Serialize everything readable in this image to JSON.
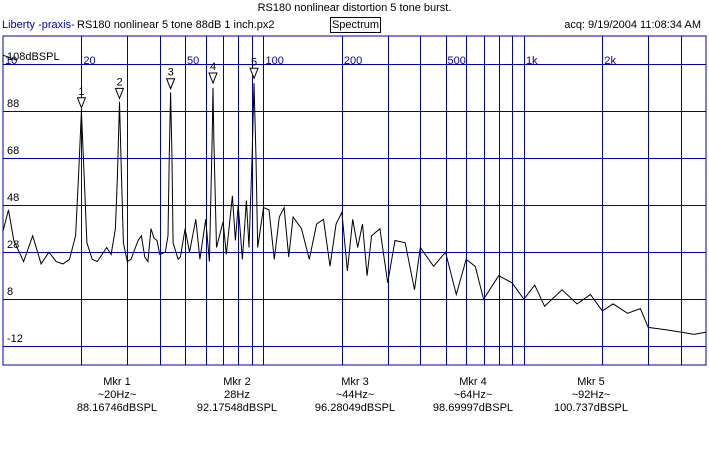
{
  "header": {
    "title": "RS180 nonlinear distortion 5 tone burst.",
    "app_name": "Liberty -praxis-",
    "file_name": "RS180 nonlinear 5 tone 88dB 1 inch.px2",
    "view_button": "Spectrum",
    "acquired": "acq: 9/19/2004 11:08:34 AM"
  },
  "chart_data": {
    "type": "line",
    "x_scale": "log",
    "xlim": [
      10,
      5000
    ],
    "ylim": [
      -20,
      120
    ],
    "grid": true,
    "x_tick_labels": [
      "10",
      "20",
      "50",
      "100",
      "200",
      "500",
      "1k",
      "2k"
    ],
    "y_tick_labels": [
      "108dBSPL",
      "88",
      "68",
      "48",
      "28",
      "8",
      "-12"
    ],
    "series": [
      {
        "points": [
          [
            10,
            37
          ],
          [
            10.5,
            46
          ],
          [
            11,
            33
          ],
          [
            12,
            24
          ],
          [
            13,
            35
          ],
          [
            14,
            23
          ],
          [
            15,
            28
          ],
          [
            16,
            24
          ],
          [
            17,
            23
          ],
          [
            18,
            25
          ],
          [
            19,
            35
          ],
          [
            19.5,
            60
          ],
          [
            20,
            88
          ],
          [
            20.5,
            60
          ],
          [
            21,
            32
          ],
          [
            22,
            25
          ],
          [
            23,
            24
          ],
          [
            24,
            27
          ],
          [
            25,
            30
          ],
          [
            26,
            27
          ],
          [
            27,
            38
          ],
          [
            27.5,
            60
          ],
          [
            28,
            92
          ],
          [
            28.5,
            60
          ],
          [
            29,
            32
          ],
          [
            30,
            24
          ],
          [
            31,
            25
          ],
          [
            33,
            33
          ],
          [
            34,
            35
          ],
          [
            35,
            26
          ],
          [
            36,
            24
          ],
          [
            37,
            38
          ],
          [
            38,
            34
          ],
          [
            39,
            33
          ],
          [
            40,
            27
          ],
          [
            42,
            28
          ],
          [
            43,
            35
          ],
          [
            43.5,
            70
          ],
          [
            44,
            96
          ],
          [
            44.5,
            70
          ],
          [
            45,
            32
          ],
          [
            47,
            25
          ],
          [
            48,
            26
          ],
          [
            50,
            38
          ],
          [
            52,
            28
          ],
          [
            55,
            42
          ],
          [
            57,
            25
          ],
          [
            60,
            42
          ],
          [
            62,
            24
          ],
          [
            63.5,
            75
          ],
          [
            64,
            98
          ],
          [
            64.5,
            75
          ],
          [
            66,
            30
          ],
          [
            70,
            41
          ],
          [
            72,
            27
          ],
          [
            76,
            52
          ],
          [
            78,
            33
          ],
          [
            80,
            48
          ],
          [
            83,
            25
          ],
          [
            86,
            50
          ],
          [
            88,
            30
          ],
          [
            90.5,
            70
          ],
          [
            92,
            100
          ],
          [
            93.5,
            70
          ],
          [
            95,
            30
          ],
          [
            100,
            47
          ],
          [
            105,
            46
          ],
          [
            110,
            25
          ],
          [
            115,
            43
          ],
          [
            120,
            47
          ],
          [
            125,
            26
          ],
          [
            130,
            43
          ],
          [
            140,
            38
          ],
          [
            150,
            25
          ],
          [
            160,
            40
          ],
          [
            170,
            42
          ],
          [
            180,
            22
          ],
          [
            190,
            40
          ],
          [
            200,
            45
          ],
          [
            210,
            20
          ],
          [
            220,
            42
          ],
          [
            230,
            30
          ],
          [
            240,
            40
          ],
          [
            250,
            18
          ],
          [
            260,
            35
          ],
          [
            280,
            38
          ],
          [
            300,
            15
          ],
          [
            320,
            33
          ],
          [
            350,
            32
          ],
          [
            380,
            12
          ],
          [
            400,
            30
          ],
          [
            450,
            22
          ],
          [
            500,
            28
          ],
          [
            550,
            10
          ],
          [
            600,
            25
          ],
          [
            650,
            22
          ],
          [
            700,
            8
          ],
          [
            800,
            18
          ],
          [
            900,
            15
          ],
          [
            1000,
            8
          ],
          [
            1100,
            14
          ],
          [
            1200,
            5
          ],
          [
            1400,
            12
          ],
          [
            1600,
            6
          ],
          [
            1800,
            10
          ],
          [
            2000,
            3
          ],
          [
            2200,
            6
          ],
          [
            2500,
            2
          ],
          [
            2800,
            4
          ],
          [
            3000,
            -4
          ],
          [
            3500,
            -5
          ],
          [
            4000,
            -6
          ],
          [
            4500,
            -7
          ],
          [
            5000,
            -6
          ]
        ]
      }
    ],
    "markers": [
      {
        "id": "1",
        "label": "Mkr 1",
        "freq_label": "~20Hz~",
        "level_label": "88.16746dBSPL",
        "freq": 20,
        "level": 88.16746
      },
      {
        "id": "2",
        "label": "Mkr 2",
        "freq_label": "28Hz",
        "level_label": "92.17548dBSPL",
        "freq": 28,
        "level": 92.17548
      },
      {
        "id": "3",
        "label": "Mkr 3",
        "freq_label": "~44Hz~",
        "level_label": "96.28049dBSPL",
        "freq": 44,
        "level": 96.28049
      },
      {
        "id": "4",
        "label": "Mkr 4",
        "freq_label": "~64Hz~",
        "level_label": "98.69997dBSPL",
        "freq": 64,
        "level": 98.69997
      },
      {
        "id": "5",
        "label": "Mkr 5",
        "freq_label": "~92Hz~",
        "level_label": "100.737dBSPL",
        "freq": 92,
        "level": 100.737
      }
    ],
    "colors": {
      "grid": "#0000aa",
      "trace": "#000000",
      "tick_labels": "#0000aa"
    }
  }
}
